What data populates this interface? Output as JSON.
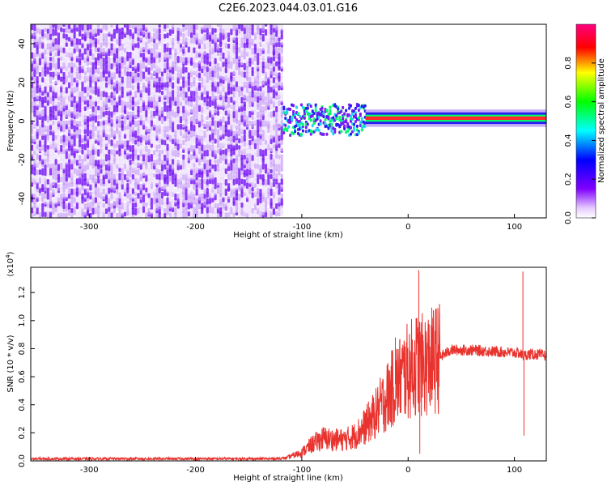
{
  "title": "C2E6.2023.044.03.01.G16",
  "top_panel": {
    "xlabel": "Height of straight line (km)",
    "ylabel": "Frequency (Hz)",
    "colorbar_label": "Normalized spectral amplitude",
    "xticks": [
      "-300",
      "-200",
      "-100",
      "0",
      "100"
    ],
    "yticks": [
      "40",
      "20",
      "0",
      "-20",
      "-40"
    ],
    "cticks": [
      "0.0",
      "0.2",
      "0.4",
      "0.6",
      "0.8"
    ]
  },
  "bottom_panel": {
    "xlabel": "Height of straight line (km)",
    "ylabel": "SNR (10 * v/v)",
    "multiplier": "(x10",
    "multiplier_exp": "4",
    "multiplier_close": ")",
    "xticks": [
      "-300",
      "-200",
      "-100",
      "0",
      "100"
    ],
    "yticks": [
      "0.0",
      "0.2",
      "0.4",
      "0.6",
      "0.8",
      "1.0",
      "1.2"
    ]
  },
  "chart_data": [
    {
      "type": "heatmap",
      "title": "C2E6.2023.044.03.01.G16",
      "xlabel": "Height of straight line (km)",
      "ylabel": "Frequency (Hz)",
      "xlim": [
        -355,
        130
      ],
      "ylim": [
        -50,
        50
      ],
      "colorbar": {
        "label": "Normalized spectral amplitude",
        "range": [
          0,
          1
        ],
        "colormap": "rainbow (purple-blue-cyan-green-yellow-red-magenta)"
      },
      "features": [
        {
          "region": "x < -118 km",
          "description": "broadband noise across all frequencies, amplitude ~0.05-0.15"
        },
        {
          "region": "-118 to -40 km",
          "frequency_hz": 0,
          "amplitude": 0.3,
          "note": "scattered band near 0 Hz"
        },
        {
          "region": "-40 to 130 km",
          "frequency_hz": 1.5,
          "amplitude": 0.85,
          "note": "narrow strong band"
        }
      ]
    },
    {
      "type": "line",
      "xlabel": "Height of straight line (km)",
      "ylabel": "SNR (10 * v/v)",
      "xlim": [
        -355,
        130
      ],
      "ylim": [
        0,
        1.38
      ],
      "y_multiplier": 10000,
      "series": [
        {
          "color": "#e8332e",
          "envelope_x": [
            -355,
            -300,
            -200,
            -130,
            -115,
            -100,
            -90,
            -80,
            -70,
            -60,
            -50,
            -40,
            -30,
            -20,
            -10,
            0,
            5,
            10,
            12,
            15,
            20,
            30,
            40,
            60,
            80,
            100,
            104,
            108,
            110,
            112,
            115,
            120,
            130
          ],
          "envelope_y": [
            0.015,
            0.015,
            0.015,
            0.015,
            0.02,
            0.06,
            0.12,
            0.16,
            0.15,
            0.15,
            0.18,
            0.25,
            0.34,
            0.46,
            0.57,
            0.64,
            0.67,
            0.7,
            0.68,
            0.68,
            0.7,
            0.74,
            0.79,
            0.79,
            0.78,
            0.77,
            0.77,
            0.75,
            0.75,
            0.76,
            0.76,
            0.76,
            0.75
          ],
          "spikes": [
            {
              "x": 10,
              "y": 1.36
            },
            {
              "x": 11,
              "y": 0.05
            },
            {
              "x": 108,
              "y": 1.35
            },
            {
              "x": 109,
              "y": 0.18
            },
            {
              "x": -12,
              "y": 0.88
            },
            {
              "x": 14,
              "y": 0.9
            }
          ]
        }
      ]
    }
  ]
}
